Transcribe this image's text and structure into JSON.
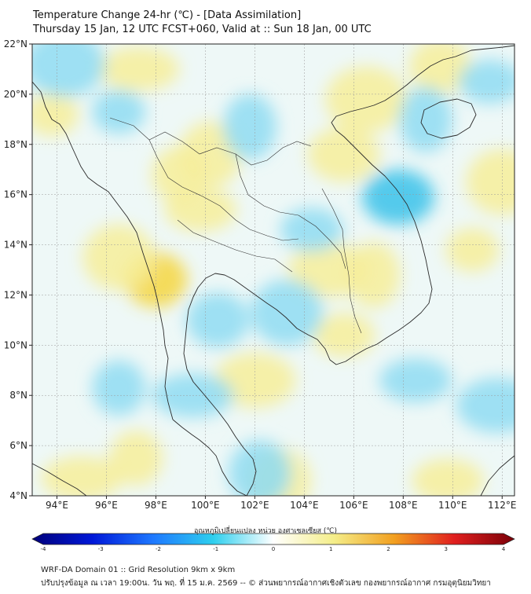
{
  "header": {
    "title_line1": "Temperature Change 24-hr (℃) - [Data Assimilation]",
    "title_line2": "Thursday 15 Jan, 12 UTC FCST+060, Valid at :: Sun 18 Jan, 00 UTC"
  },
  "map": {
    "lat_range": [
      4,
      22
    ],
    "lon_range": [
      93,
      112.5
    ],
    "lat_ticks": [
      {
        "value": 22,
        "label": "22°N"
      },
      {
        "value": 20,
        "label": "20°N"
      },
      {
        "value": 18,
        "label": "18°N"
      },
      {
        "value": 16,
        "label": "16°N"
      },
      {
        "value": 14,
        "label": "14°N"
      },
      {
        "value": 12,
        "label": "12°N"
      },
      {
        "value": 10,
        "label": "10°N"
      },
      {
        "value": 8,
        "label": "8°N"
      },
      {
        "value": 6,
        "label": "6°N"
      },
      {
        "value": 4,
        "label": "4°N"
      }
    ],
    "lon_ticks": [
      {
        "value": 94,
        "label": "94°E"
      },
      {
        "value": 96,
        "label": "96°E"
      },
      {
        "value": 98,
        "label": "98°E"
      },
      {
        "value": 100,
        "label": "100°E"
      },
      {
        "value": 102,
        "label": "102°E"
      },
      {
        "value": 104,
        "label": "104°E"
      },
      {
        "value": 106,
        "label": "106°E"
      },
      {
        "value": 108,
        "label": "108°E"
      },
      {
        "value": 110,
        "label": "110°E"
      },
      {
        "value": 112,
        "label": "112°E"
      }
    ],
    "warm_areas": [
      {
        "lon": 93.8,
        "lat": 19.2,
        "dt": 0.9
      },
      {
        "lon": 98.0,
        "lat": 12.6,
        "dt": 1.4
      },
      {
        "lon": 96.5,
        "lat": 13.5,
        "dt": 0.9
      },
      {
        "lon": 97.3,
        "lat": 21.0,
        "dt": 0.8
      },
      {
        "lon": 98.9,
        "lat": 16.8,
        "dt": 0.8
      },
      {
        "lon": 100.2,
        "lat": 17.6,
        "dt": 0.8
      },
      {
        "lon": 99.8,
        "lat": 15.4,
        "dt": 0.8
      },
      {
        "lon": 105.0,
        "lat": 13.0,
        "dt": 0.9
      },
      {
        "lon": 106.8,
        "lat": 12.8,
        "dt": 0.8
      },
      {
        "lon": 105.6,
        "lat": 10.4,
        "dt": 0.9
      },
      {
        "lon": 105.6,
        "lat": 17.6,
        "dt": 0.9
      },
      {
        "lon": 106.5,
        "lat": 19.8,
        "dt": 0.8
      },
      {
        "lon": 110.8,
        "lat": 13.8,
        "dt": 1.0
      },
      {
        "lon": 109.5,
        "lat": 21.1,
        "dt": 0.8
      },
      {
        "lon": 112.0,
        "lat": 16.5,
        "dt": 0.6
      },
      {
        "lon": 95.0,
        "lat": 4.7,
        "dt": 0.8
      },
      {
        "lon": 97.2,
        "lat": 5.5,
        "dt": 0.7
      },
      {
        "lon": 103.0,
        "lat": 4.6,
        "dt": 0.7
      },
      {
        "lon": 109.8,
        "lat": 4.6,
        "dt": 0.7
      },
      {
        "lon": 102.0,
        "lat": 8.6,
        "dt": 0.5
      }
    ],
    "cool_areas": [
      {
        "lon": 101.8,
        "lat": 18.7,
        "dt": -0.8
      },
      {
        "lon": 104.3,
        "lat": 14.6,
        "dt": -0.7
      },
      {
        "lon": 107.8,
        "lat": 15.9,
        "dt": -1.0
      },
      {
        "lon": 94.3,
        "lat": 21.2,
        "dt": -0.6
      },
      {
        "lon": 96.5,
        "lat": 19.3,
        "dt": -0.6
      },
      {
        "lon": 100.5,
        "lat": 11.0,
        "dt": -0.6
      },
      {
        "lon": 103.3,
        "lat": 11.3,
        "dt": -0.6
      },
      {
        "lon": 99.5,
        "lat": 8.0,
        "dt": -0.6
      },
      {
        "lon": 96.5,
        "lat": 8.3,
        "dt": -0.6
      },
      {
        "lon": 102.2,
        "lat": 4.9,
        "dt": -0.6
      },
      {
        "lon": 108.5,
        "lat": 8.6,
        "dt": -0.5
      },
      {
        "lon": 111.8,
        "lat": 7.6,
        "dt": -0.6
      },
      {
        "lon": 108.9,
        "lat": 19.0,
        "dt": -0.6
      },
      {
        "lon": 111.5,
        "lat": 20.5,
        "dt": -0.5
      }
    ]
  },
  "colorbar": {
    "label": "อุณหภูมิเปลี่ยนแปลง หน่วย องศาเซลเซียส (℃)",
    "min": -4,
    "max": 4,
    "ticks": [
      {
        "value": -4,
        "label": "-4"
      },
      {
        "value": -3,
        "label": "-3"
      },
      {
        "value": -2,
        "label": "-2"
      },
      {
        "value": -1,
        "label": "-1"
      },
      {
        "value": 0,
        "label": "0"
      },
      {
        "value": 1,
        "label": "1"
      },
      {
        "value": 2,
        "label": "2"
      },
      {
        "value": 3,
        "label": "3"
      },
      {
        "value": 4,
        "label": "4"
      }
    ],
    "colors": [
      "#00007a",
      "#0018d8",
      "#1e78ff",
      "#2ecfee",
      "#ffffff",
      "#f4ee8a",
      "#f2a020",
      "#e01f1f",
      "#7a0008"
    ]
  },
  "footer": {
    "line1": "WRF-DA Domain 01 :: Grid Resolution 9km x 9km",
    "line2": "ปรับปรุงข้อมูล ณ เวลา 19:00น. วัน พฤ. ที่ 15 ม.ค. 2569 -- © ส่วนพยากรณ์อากาศเชิงตัวเลข กองพยากรณ์อากาศ กรมอุตุนิยมวิทยา"
  }
}
